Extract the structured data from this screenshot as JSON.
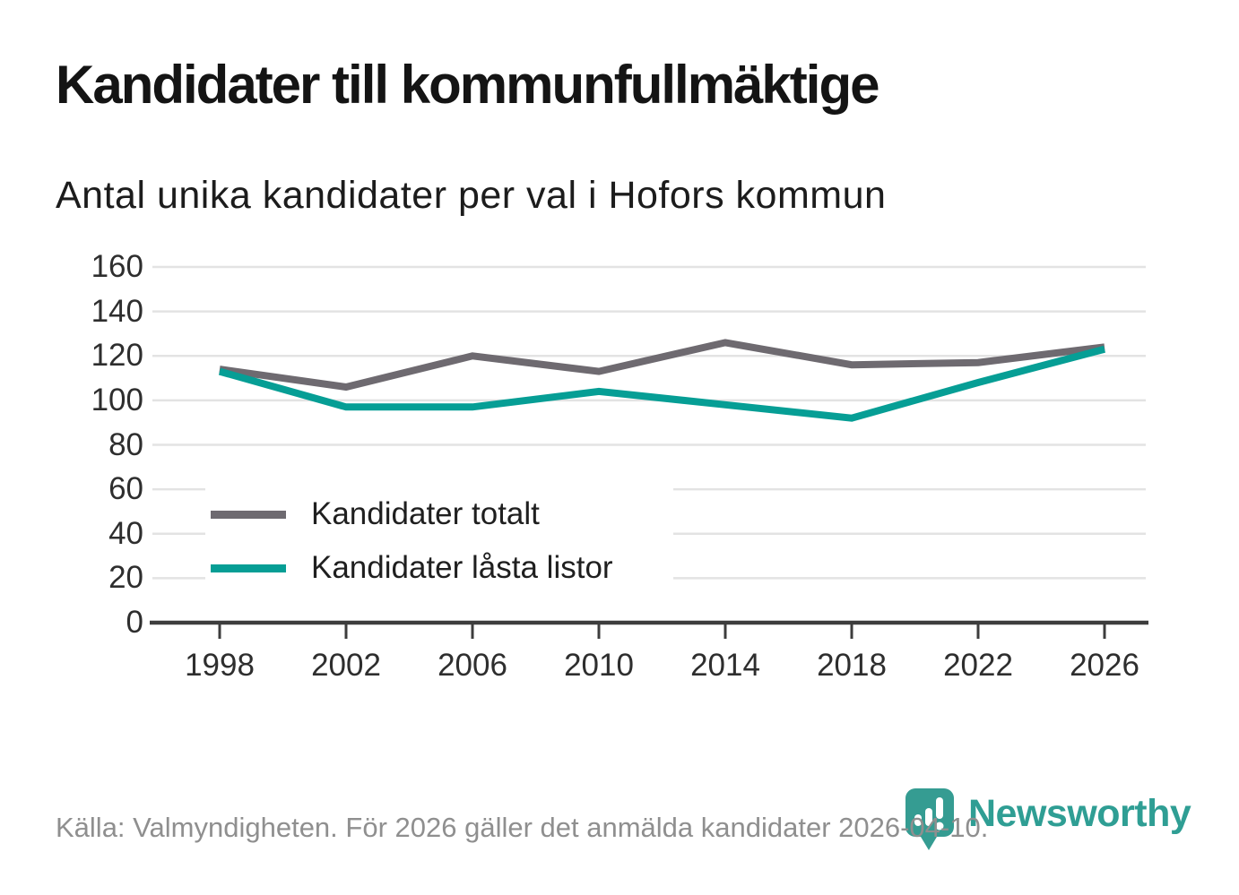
{
  "header": {
    "title": "Kandidater till kommunfullmäktige",
    "subtitle": "Antal unika kandidater per val i Hofors kommun"
  },
  "chart_data": {
    "type": "line",
    "x": [
      1998,
      2002,
      2006,
      2010,
      2014,
      2018,
      2022,
      2026
    ],
    "series": [
      {
        "name": "Kandidater totalt",
        "color": "#6e6a70",
        "values": [
          114,
          106,
          120,
          113,
          126,
          116,
          117,
          124
        ]
      },
      {
        "name": "Kandidater låsta listor",
        "color": "#069e95",
        "values": [
          113,
          97,
          97,
          104,
          98,
          92,
          108,
          123
        ]
      }
    ],
    "title": "Kandidater till kommunfullmäktige",
    "subtitle": "Antal unika kandidater per val i Hofors kommun",
    "xlabel": "",
    "ylabel": "",
    "ylim": [
      0,
      160
    ],
    "yticks": [
      0,
      20,
      40,
      60,
      80,
      100,
      120,
      140,
      160
    ],
    "grid": true,
    "legend_position": "inside-bottom-left",
    "colors": {
      "gridline": "#e3e3e3",
      "axis": "#3d3d3d",
      "tick_text": "#2e2e2e"
    }
  },
  "footer": {
    "source": "Källa: Valmyndigheten. För 2026 gäller det anmälda kandidater 2026-04-10.",
    "brand": "Newsworthy",
    "brand_color": "#2f9e94"
  }
}
